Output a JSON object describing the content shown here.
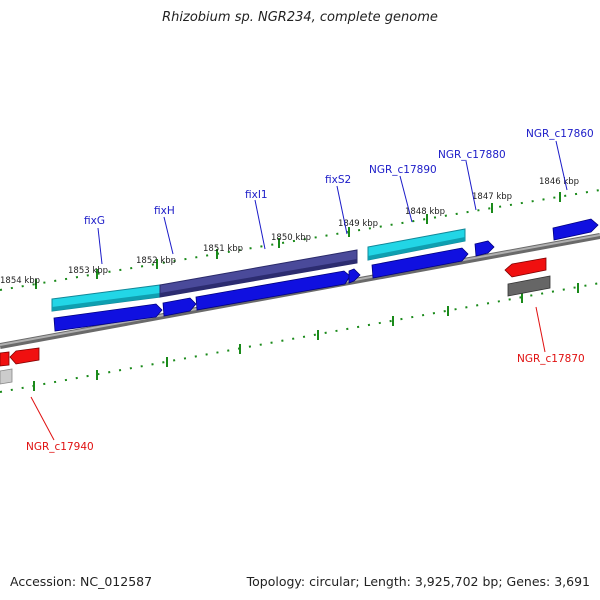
{
  "title": "Rhizobium sp. NGR234, complete genome",
  "footer": {
    "accession": "Accession: NC_012587",
    "topology": "Topology: circular; Length: 3,925,702 bp; Genes: 3,691"
  },
  "kbp_ticks": [
    "1854 kbp",
    "1853 kbp",
    "1852 kbp",
    "1851 kbp",
    "1850 kbp",
    "1849 kbp",
    "1848 kbp",
    "1847 kbp",
    "1846 kbp"
  ],
  "genes_forward": [
    "fixG",
    "fixH",
    "fixI1",
    "fixS2",
    "NGR_c17890",
    "NGR_c17880",
    "NGR_c17860"
  ],
  "genes_reverse": [
    "NGR_c17870",
    "NGR_c17940"
  ],
  "colors": {
    "gene_forward": "#1010e0",
    "gene_reverse": "#f01010",
    "cds_cyan": "#20c8d8",
    "cds_purple": "#3a3a8a",
    "pseudo_gray": "#666666",
    "tick_green": "#1a8a1a",
    "backbone": "#888888",
    "label_blue": "#1c1cc8",
    "label_red": "#e01010"
  }
}
